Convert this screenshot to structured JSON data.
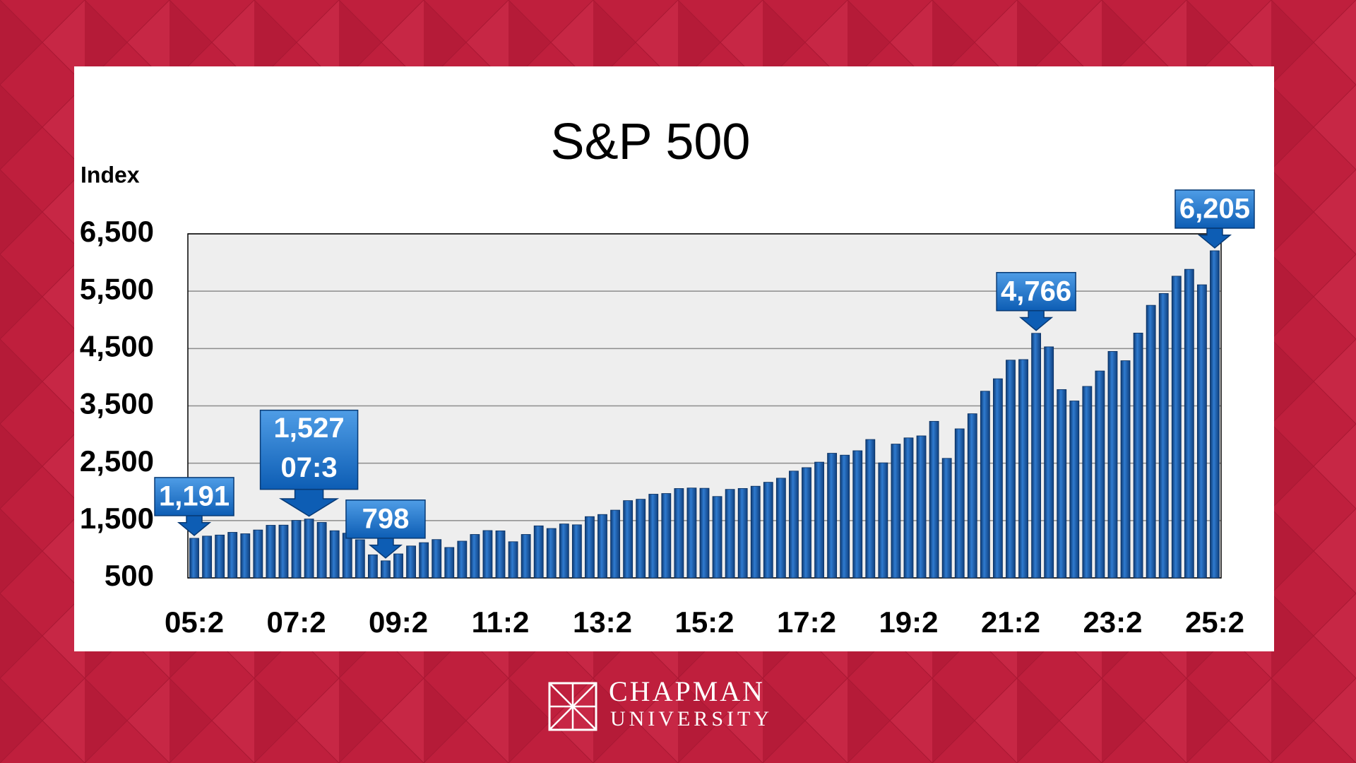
{
  "chart_data": {
    "type": "bar",
    "title": "S&P 500",
    "y_label": "Index",
    "categories": [
      "05:2",
      null,
      null,
      null,
      null,
      null,
      null,
      null,
      "07:2",
      null,
      null,
      null,
      null,
      null,
      null,
      null,
      "09:2",
      null,
      null,
      null,
      null,
      null,
      null,
      null,
      "11:2",
      null,
      null,
      null,
      null,
      null,
      null,
      null,
      "13:2",
      null,
      null,
      null,
      null,
      null,
      null,
      null,
      "15:2",
      null,
      null,
      null,
      null,
      null,
      null,
      null,
      "17:2",
      null,
      null,
      null,
      null,
      null,
      null,
      null,
      "19:2",
      null,
      null,
      null,
      null,
      null,
      null,
      null,
      "21:2",
      null,
      null,
      null,
      null,
      null,
      null,
      null,
      "23:2",
      null,
      null,
      null,
      null,
      null,
      null,
      null,
      "25:2"
    ],
    "values": [
      1191,
      1229,
      1248,
      1295,
      1270,
      1336,
      1418,
      1421,
      1503,
      1527,
      1468,
      1323,
      1280,
      1166,
      903,
      798,
      919,
      1057,
      1115,
      1169,
      1031,
      1141,
      1258,
      1326,
      1321,
      1131,
      1258,
      1408,
      1362,
      1441,
      1426,
      1569,
      1606,
      1682,
      1848,
      1872,
      1960,
      1972,
      2059,
      2068,
      2063,
      1920,
      2044,
      2060,
      2099,
      2168,
      2239,
      2363,
      2423,
      2519,
      2674,
      2641,
      2718,
      2914,
      2507,
      2834,
      2942,
      2977,
      3231,
      2585,
      3100,
      3363,
      3756,
      3973,
      4298,
      4308,
      4766,
      4530,
      3785,
      3586,
      3840,
      4109,
      4450,
      4288,
      4770,
      5254,
      5460,
      5762,
      5882,
      5612,
      6205
    ],
    "value_labels": [
      "1,191",
      null,
      null,
      null,
      null,
      null,
      null,
      null,
      null,
      "1,527",
      null,
      null,
      null,
      null,
      null,
      "798",
      null,
      null,
      null,
      null,
      null,
      null,
      null,
      null,
      null,
      null,
      null,
      null,
      null,
      null,
      null,
      null,
      null,
      null,
      null,
      null,
      null,
      null,
      null,
      null,
      null,
      null,
      null,
      null,
      null,
      null,
      null,
      null,
      null,
      null,
      null,
      null,
      null,
      null,
      null,
      null,
      null,
      null,
      null,
      null,
      null,
      null,
      null,
      null,
      null,
      null,
      "4,766",
      null,
      null,
      null,
      null,
      null,
      null,
      null,
      null,
      null,
      null,
      null,
      null,
      null,
      "6,205"
    ],
    "value_notes": [
      null,
      null,
      null,
      null,
      null,
      null,
      null,
      null,
      null,
      "07:3",
      null,
      null,
      null,
      null,
      null,
      null,
      null,
      null,
      null,
      null,
      null,
      null,
      null,
      null,
      null,
      null,
      null,
      null,
      null,
      null,
      null,
      null,
      null,
      null,
      null,
      null,
      null,
      null,
      null,
      null,
      null,
      null,
      null,
      null,
      null,
      null,
      null,
      null,
      null,
      null,
      null,
      null,
      null,
      null,
      null,
      null,
      null,
      null,
      null,
      null,
      null,
      null,
      null,
      null,
      null,
      null,
      null,
      null,
      null,
      null,
      null,
      null,
      null,
      null,
      null,
      null,
      null,
      null,
      null,
      null,
      null
    ],
    "color": "#1c5ea8",
    "ylim": [
      500,
      6500
    ],
    "yticks": [
      500,
      {
        "value": 1500,
        "label": "1,500"
      },
      {
        "value": 2500,
        "label": "2,500"
      },
      {
        "value": 3500,
        "label": "3,500"
      },
      {
        "value": 4500,
        "label": "4,500"
      },
      {
        "value": 5500,
        "label": "5,500"
      },
      {
        "value": 6500,
        "label": "6,500"
      }
    ],
    "grid": true
  },
  "logo": {
    "line1": "CHAPMAN",
    "line2": "UNIVERSITY"
  }
}
